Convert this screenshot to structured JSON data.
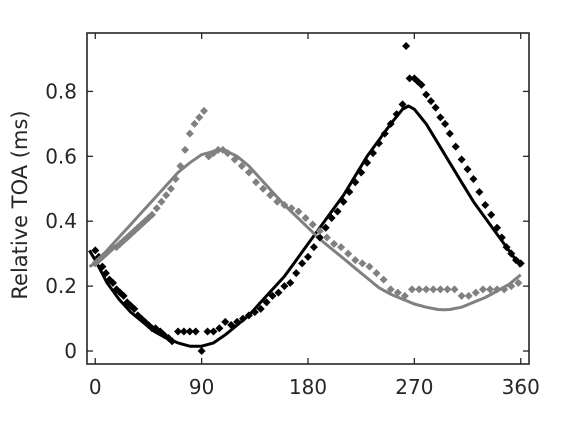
{
  "chart_data": {
    "type": "scatter",
    "title": "",
    "xlabel": "",
    "ylabel": "Relative TOA (ms)",
    "xlim": [
      -7,
      367
    ],
    "ylim": [
      -0.04,
      0.98
    ],
    "xticks": [
      0,
      90,
      180,
      270,
      360
    ],
    "yticks": [
      0,
      0.2,
      0.4,
      0.6,
      0.8
    ],
    "grid": false,
    "legend": "none",
    "colors": {
      "black_series": "#000000",
      "gray_series": "#808080",
      "axes": "#262626"
    },
    "series": [
      {
        "kind": "points",
        "color": "#000000",
        "x": [
          0,
          3,
          6,
          9,
          12,
          15,
          18,
          21,
          24,
          27,
          30,
          33,
          36,
          39,
          42,
          45,
          48,
          51,
          55,
          58,
          62,
          65,
          70,
          75,
          80,
          85,
          90,
          95,
          100,
          105,
          110,
          115,
          120,
          125,
          130,
          135,
          140,
          145,
          150,
          155,
          160,
          165,
          170,
          175,
          180,
          185,
          190,
          195,
          200,
          205,
          210,
          215,
          220,
          225,
          230,
          235,
          240,
          245,
          250,
          255,
          260,
          263,
          266,
          270,
          273,
          276,
          280,
          284,
          288,
          292,
          296,
          300,
          305,
          310,
          315,
          320,
          325,
          330,
          335,
          340,
          344,
          348,
          352,
          356,
          360
        ],
        "y": [
          0.31,
          0.29,
          0.26,
          0.24,
          0.22,
          0.21,
          0.19,
          0.18,
          0.17,
          0.15,
          0.14,
          0.13,
          0.11,
          0.1,
          0.09,
          0.08,
          0.07,
          0.07,
          0.06,
          0.05,
          0.04,
          0.03,
          0.06,
          0.06,
          0.06,
          0.06,
          0.0,
          0.06,
          0.06,
          0.07,
          0.09,
          0.08,
          0.09,
          0.1,
          0.11,
          0.12,
          0.13,
          0.15,
          0.17,
          0.18,
          0.2,
          0.21,
          0.24,
          0.27,
          0.29,
          0.32,
          0.35,
          0.38,
          0.41,
          0.43,
          0.46,
          0.49,
          0.52,
          0.55,
          0.58,
          0.61,
          0.64,
          0.67,
          0.7,
          0.73,
          0.76,
          0.94,
          0.84,
          0.84,
          0.83,
          0.82,
          0.79,
          0.77,
          0.75,
          0.72,
          0.7,
          0.67,
          0.63,
          0.59,
          0.56,
          0.53,
          0.49,
          0.45,
          0.42,
          0.38,
          0.35,
          0.32,
          0.3,
          0.28,
          0.27
        ]
      },
      {
        "kind": "points",
        "color": "#808080",
        "x": [
          0,
          3,
          6,
          9,
          12,
          15,
          18,
          21,
          24,
          27,
          30,
          33,
          36,
          39,
          42,
          45,
          48,
          52,
          56,
          60,
          64,
          68,
          72,
          76,
          80,
          84,
          88,
          92,
          96,
          100,
          104,
          108,
          112,
          118,
          124,
          130,
          136,
          142,
          148,
          154,
          160,
          166,
          172,
          178,
          184,
          190,
          196,
          202,
          208,
          214,
          220,
          226,
          232,
          238,
          244,
          250,
          256,
          262,
          268,
          274,
          280,
          286,
          292,
          298,
          304,
          310,
          316,
          322,
          328,
          334,
          340,
          346,
          352,
          358
        ],
        "y": [
          0.27,
          0.28,
          0.29,
          0.3,
          0.31,
          0.32,
          0.32,
          0.33,
          0.34,
          0.35,
          0.36,
          0.37,
          0.38,
          0.39,
          0.4,
          0.41,
          0.42,
          0.44,
          0.46,
          0.48,
          0.5,
          0.53,
          0.57,
          0.62,
          0.67,
          0.7,
          0.72,
          0.74,
          0.6,
          0.61,
          0.62,
          0.62,
          0.61,
          0.59,
          0.57,
          0.55,
          0.52,
          0.5,
          0.48,
          0.46,
          0.45,
          0.44,
          0.43,
          0.41,
          0.39,
          0.37,
          0.35,
          0.33,
          0.32,
          0.3,
          0.28,
          0.27,
          0.26,
          0.24,
          0.22,
          0.19,
          0.18,
          0.17,
          0.19,
          0.19,
          0.19,
          0.19,
          0.19,
          0.19,
          0.19,
          0.17,
          0.17,
          0.18,
          0.19,
          0.19,
          0.19,
          0.19,
          0.2,
          0.21
        ]
      },
      {
        "kind": "curve",
        "color": "#000000",
        "x": [
          -5,
          0,
          10,
          20,
          30,
          40,
          50,
          60,
          70,
          80,
          90,
          100,
          110,
          120,
          130,
          140,
          150,
          160,
          170,
          180,
          190,
          200,
          210,
          220,
          230,
          240,
          250,
          260,
          265,
          270,
          280,
          290,
          300,
          310,
          320,
          330,
          340,
          350,
          360
        ],
        "y": [
          0.31,
          0.28,
          0.21,
          0.16,
          0.12,
          0.09,
          0.06,
          0.04,
          0.025,
          0.015,
          0.015,
          0.025,
          0.05,
          0.08,
          0.11,
          0.15,
          0.19,
          0.23,
          0.28,
          0.33,
          0.38,
          0.43,
          0.48,
          0.54,
          0.6,
          0.65,
          0.7,
          0.745,
          0.755,
          0.745,
          0.7,
          0.64,
          0.58,
          0.52,
          0.46,
          0.41,
          0.36,
          0.31,
          0.26
        ]
      },
      {
        "kind": "curve",
        "color": "#808080",
        "x": [
          -5,
          0,
          10,
          20,
          30,
          40,
          50,
          60,
          70,
          80,
          90,
          100,
          105,
          110,
          120,
          130,
          140,
          150,
          160,
          170,
          180,
          190,
          200,
          210,
          220,
          230,
          240,
          250,
          260,
          270,
          280,
          290,
          295,
          300,
          310,
          320,
          330,
          340,
          350,
          360
        ],
        "y": [
          0.26,
          0.27,
          0.31,
          0.35,
          0.39,
          0.43,
          0.47,
          0.51,
          0.55,
          0.58,
          0.605,
          0.615,
          0.62,
          0.618,
          0.6,
          0.57,
          0.53,
          0.49,
          0.45,
          0.415,
          0.38,
          0.345,
          0.315,
          0.285,
          0.255,
          0.225,
          0.195,
          0.175,
          0.16,
          0.145,
          0.135,
          0.128,
          0.127,
          0.128,
          0.135,
          0.15,
          0.165,
          0.185,
          0.205,
          0.235
        ]
      }
    ]
  }
}
